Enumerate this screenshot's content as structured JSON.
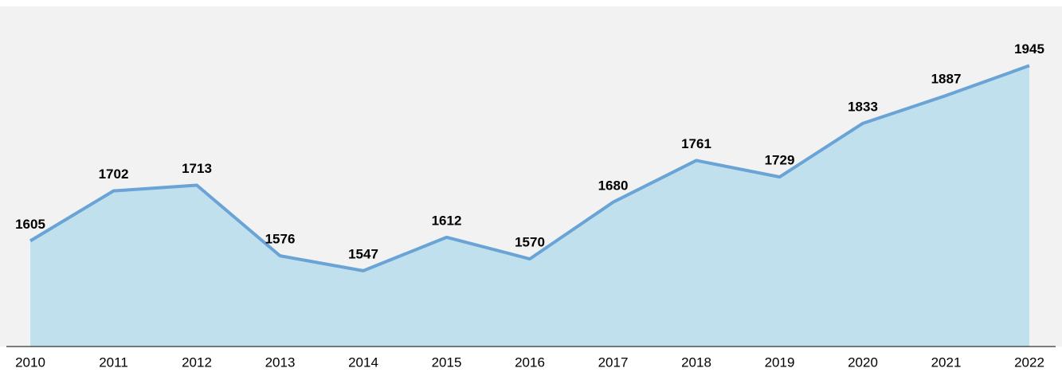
{
  "chart_data": {
    "type": "area",
    "categories": [
      "2010",
      "2011",
      "2012",
      "2013",
      "2014",
      "2015",
      "2016",
      "2017",
      "2018",
      "2019",
      "2020",
      "2021",
      "2022"
    ],
    "values": [
      1605,
      1702,
      1713,
      1576,
      1547,
      1612,
      1570,
      1680,
      1761,
      1729,
      1833,
      1887,
      1945
    ],
    "color": "#6aa3d5",
    "fill_color": "#c0e0ee",
    "ylim": [
      1400,
      2060
    ]
  }
}
